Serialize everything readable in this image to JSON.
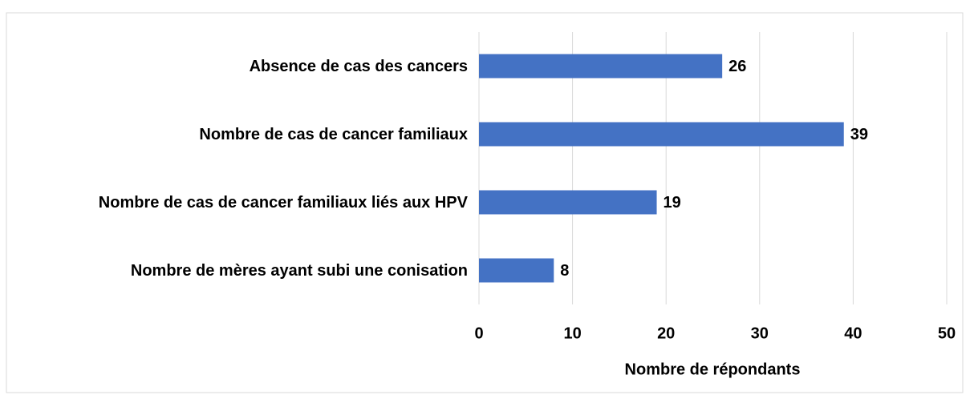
{
  "chart_data": {
    "type": "bar",
    "orientation": "horizontal",
    "categories": [
      "Absence de cas des cancers",
      "Nombre de cas de cancer familiaux",
      "Nombre de cas de cancer familiaux liés aux HPV",
      "Nombre de mères ayant subi une conisation"
    ],
    "values": [
      26,
      39,
      19,
      8
    ],
    "color": "#4472c4",
    "xlabel": "Nombre de répondants",
    "xlim": [
      0,
      50
    ],
    "xticks": [
      0,
      10,
      20,
      30,
      40,
      50
    ],
    "grid": true
  }
}
